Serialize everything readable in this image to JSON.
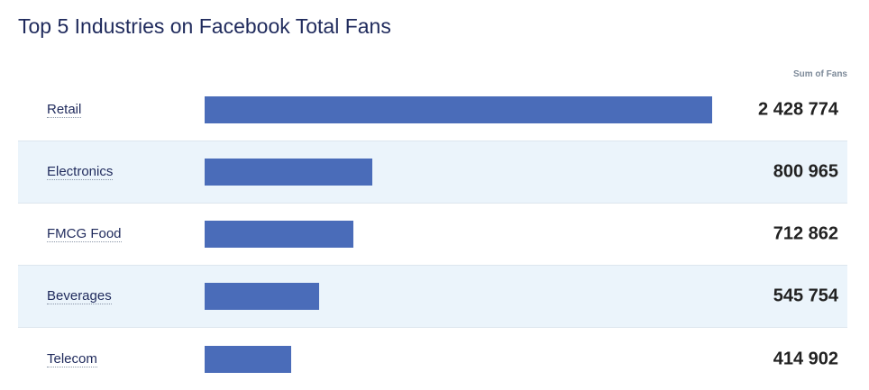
{
  "chart_data": {
    "type": "bar",
    "orientation": "horizontal",
    "title": "Top 5 Industries on Facebook Total Fans",
    "value_header": "Sum of Fans",
    "categories": [
      "Retail",
      "Electronics",
      "FMCG Food",
      "Beverages",
      "Telecom"
    ],
    "values": [
      2428774,
      800965,
      712862,
      545754,
      414902
    ],
    "value_labels": [
      "2 428 774",
      "800 965",
      "712 862",
      "545 754",
      "414 902"
    ],
    "xlim": [
      0,
      2428774
    ],
    "bar_color": "#4a6cb9",
    "alt_row_color": "#ebf4fb",
    "grid": false,
    "legend": "none"
  }
}
